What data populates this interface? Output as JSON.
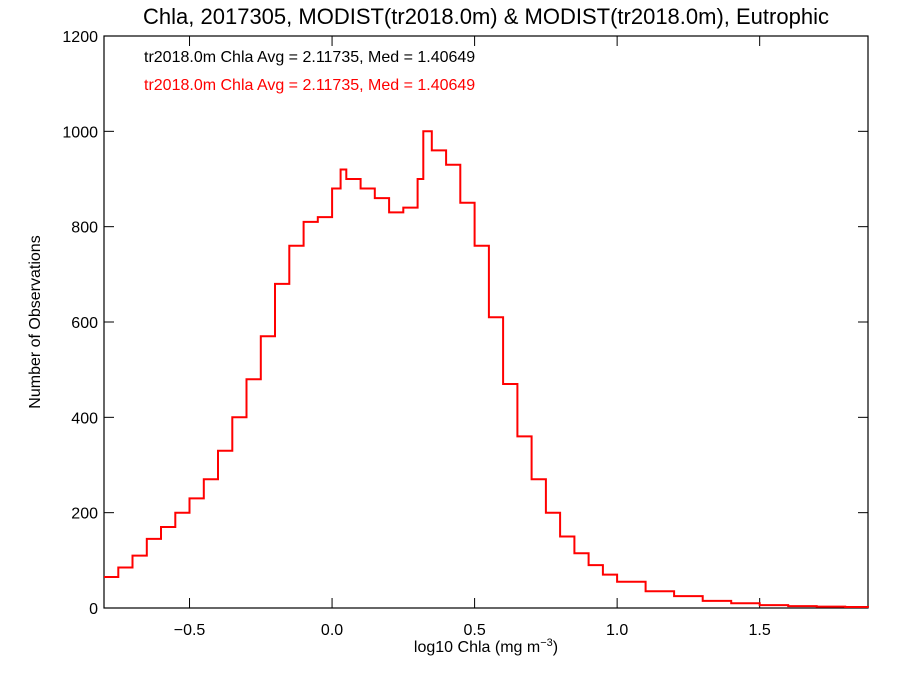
{
  "chart_data": {
    "type": "line",
    "title": "Chla, 2017305, MODIST(tr2018.0m) & MODIST(tr2018.0m), Eutrophic",
    "xlabel_main": "log10 Chla (mg m",
    "xlabel_sup": "−3",
    "xlabel_close": ")",
    "ylabel": "Number of Observations",
    "xlim": [
      -0.8,
      1.88
    ],
    "ylim": [
      0,
      1200
    ],
    "x_ticks": [
      -0.5,
      0.0,
      0.5,
      1.0,
      1.5
    ],
    "x_tick_labels": [
      "−0.5",
      "0.0",
      "0.5",
      "1.0",
      "1.5"
    ],
    "y_ticks": [
      0,
      200,
      400,
      600,
      800,
      1000,
      1200
    ],
    "y_tick_labels": [
      "0",
      "200",
      "400",
      "600",
      "800",
      "1000",
      "1200"
    ],
    "annotations": [
      {
        "text": "tr2018.0m Chla Avg = 2.11735, Med = 1.40649",
        "color": "#000000"
      },
      {
        "text": "tr2018.0m Chla Avg = 2.11735, Med = 1.40649",
        "color": "#ff0000"
      }
    ],
    "series": [
      {
        "color": "#ff0000",
        "style": "step",
        "x": [
          -0.8,
          -0.75,
          -0.7,
          -0.65,
          -0.6,
          -0.55,
          -0.5,
          -0.45,
          -0.4,
          -0.35,
          -0.3,
          -0.25,
          -0.2,
          -0.15,
          -0.1,
          -0.05,
          0.0,
          0.03,
          0.05,
          0.1,
          0.15,
          0.2,
          0.25,
          0.3,
          0.32,
          0.35,
          0.4,
          0.45,
          0.5,
          0.55,
          0.6,
          0.65,
          0.7,
          0.75,
          0.8,
          0.85,
          0.9,
          0.95,
          1.0,
          1.1,
          1.2,
          1.3,
          1.4,
          1.5,
          1.6,
          1.7,
          1.8,
          1.88
        ],
        "y": [
          65,
          85,
          110,
          145,
          170,
          200,
          230,
          270,
          330,
          400,
          480,
          570,
          680,
          760,
          810,
          820,
          880,
          920,
          900,
          880,
          860,
          830,
          840,
          900,
          1000,
          960,
          930,
          850,
          760,
          610,
          470,
          360,
          270,
          200,
          150,
          115,
          90,
          70,
          55,
          35,
          25,
          15,
          10,
          6,
          4,
          3,
          2,
          1
        ]
      }
    ]
  }
}
